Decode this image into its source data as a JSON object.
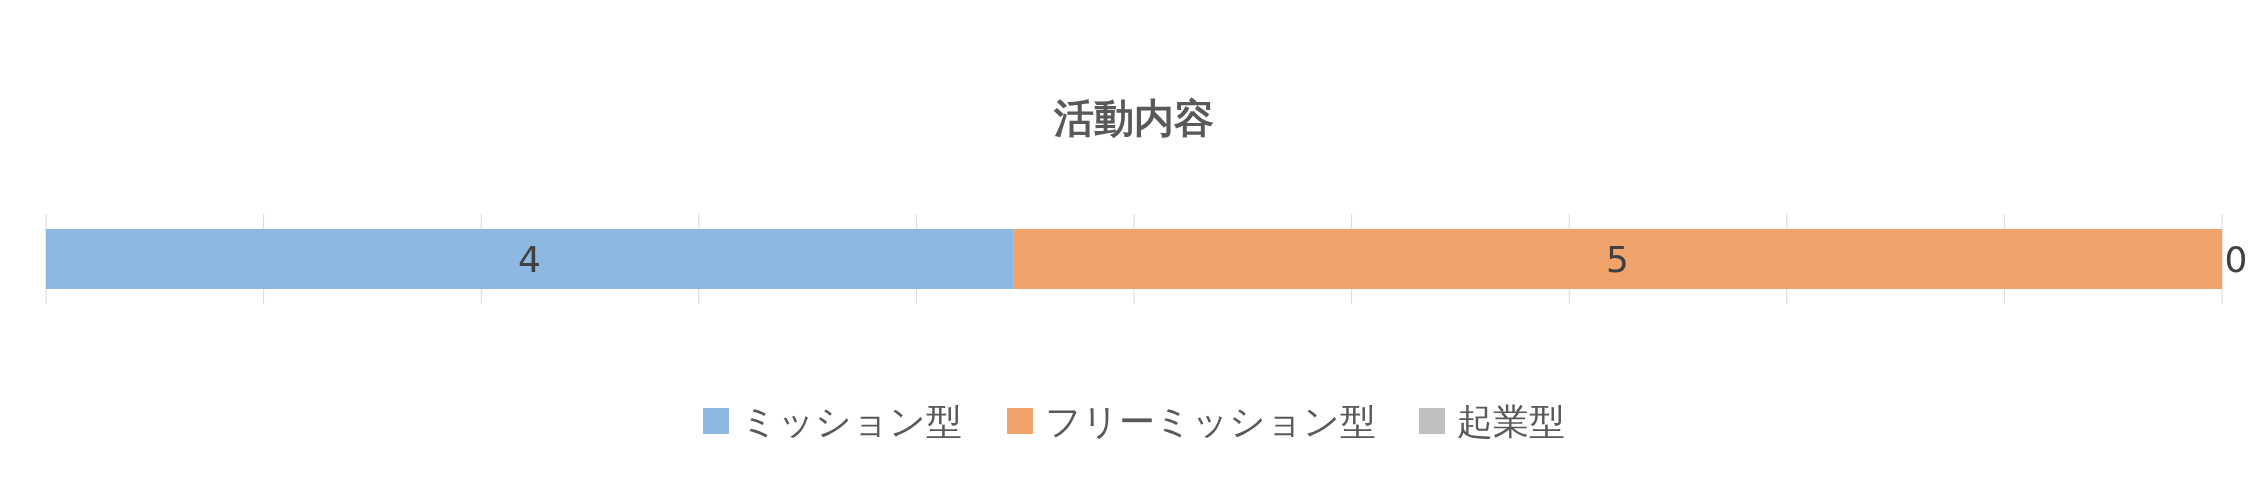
{
  "chart_data": {
    "type": "bar",
    "title": "活動内容",
    "orientation": "horizontal",
    "stacked": true,
    "categories": [
      null
    ],
    "series": [
      {
        "name": "ミッション型",
        "color": "#8db8e2",
        "values": [
          4
        ]
      },
      {
        "name": "フリーミッション型",
        "color": "#f0a46c",
        "values": [
          5
        ]
      },
      {
        "name": "起業型",
        "color": "#bfbfbf",
        "values": [
          0
        ]
      }
    ],
    "xlim": [
      0,
      9
    ],
    "xticks": [
      {
        "value": 0,
        "label": null
      },
      {
        "value": 0.9,
        "label": null
      },
      {
        "value": 1.8,
        "label": null
      },
      {
        "value": 2.7,
        "label": null
      },
      {
        "value": 3.6,
        "label": null
      },
      {
        "value": 4.5,
        "label": null
      },
      {
        "value": 5.4,
        "label": null
      },
      {
        "value": 6.3,
        "label": null
      },
      {
        "value": 7.2,
        "label": null
      },
      {
        "value": 8.1,
        "label": null
      },
      {
        "value": 9,
        "label": null
      }
    ],
    "grid": "x",
    "data_labels": true,
    "legend": "bottom"
  }
}
